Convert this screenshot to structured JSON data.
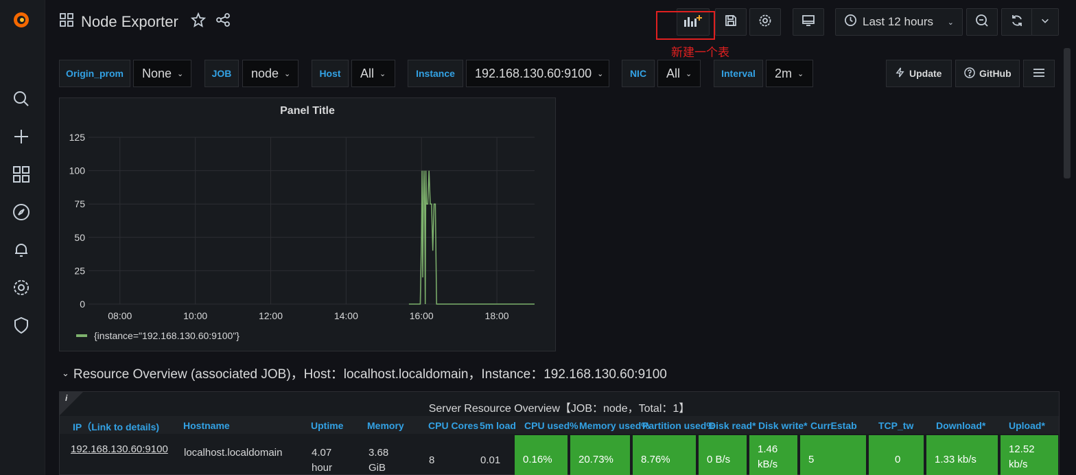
{
  "dashboard": {
    "title": "Node Exporter"
  },
  "timepicker": {
    "label": "Last 12 hours"
  },
  "annotation": {
    "text": "新建一个表"
  },
  "variables": [
    {
      "label": "Origin_prom",
      "value": "None"
    },
    {
      "label": "JOB",
      "value": "node"
    },
    {
      "label": "Host",
      "value": "All"
    },
    {
      "label": "Instance",
      "value": "192.168.130.60:9100"
    },
    {
      "label": "NIC",
      "value": "All"
    },
    {
      "label": "Interval",
      "value": "2m"
    }
  ],
  "links": {
    "update": "Update",
    "github": "GitHub"
  },
  "panel": {
    "title": "Panel Title"
  },
  "chart_data": {
    "type": "line",
    "title": "Panel Title",
    "x_ticks": [
      "08:00",
      "10:00",
      "12:00",
      "14:00",
      "16:00",
      "18:00"
    ],
    "y_ticks": [
      "125",
      "100",
      "75",
      "50",
      "25",
      "0"
    ],
    "ylim": [
      0,
      125
    ],
    "grid": true,
    "legend_placement": "bottom-left",
    "series": [
      {
        "name": "{instance=\"192.168.130.60:9100\"}",
        "color": "#7eb26d",
        "x": [
          "07:10",
          "15:40",
          "15:58",
          "16:00",
          "16:01",
          "16:02",
          "16:03",
          "16:04",
          "16:05",
          "16:06",
          "16:07",
          "16:08",
          "16:10",
          "16:12",
          "16:14",
          "16:16",
          "16:18",
          "16:20",
          "16:22",
          "16:24",
          "19:00"
        ],
        "values": [
          null,
          0,
          0,
          50,
          100,
          20,
          75,
          100,
          75,
          0,
          100,
          75,
          75,
          100,
          75,
          75,
          40,
          75,
          75,
          0,
          0
        ]
      }
    ]
  },
  "row": {
    "title": "Resource Overview (associated JOB)，Host：localhost.localdomain，Instance：192.168.130.60:9100"
  },
  "table": {
    "title": "Server Resource Overview【JOB：node，Total：1】",
    "info": "i",
    "headers": [
      "IP（Link to details)",
      "Hostname",
      "Uptime",
      "Memory",
      "CPU Cores",
      "5m load",
      "CPU used%",
      "Memory used%",
      "Partition used%",
      "Disk read*",
      "Disk write*",
      "CurrEstab",
      "TCP_tw",
      "Download*",
      "Upload*"
    ],
    "row": {
      "ip": "192.168.130.60:9100",
      "hostname": "localhost.localdomain",
      "uptime_1": "4.07",
      "uptime_2": "hour",
      "memory_1": "3.68",
      "memory_2": "GiB",
      "cpu_cores": "8",
      "load": "0.01",
      "cpu_used": "0.16%",
      "mem_used": "20.73%",
      "part_used": "8.76%",
      "disk_read": "0 B/s",
      "disk_write_1": "1.46",
      "disk_write_2": "kB/s",
      "currestab": "5",
      "tcp_tw": "0",
      "download": "1.33 kb/s",
      "upload_1": "12.52",
      "upload_2": "kb/s"
    }
  }
}
